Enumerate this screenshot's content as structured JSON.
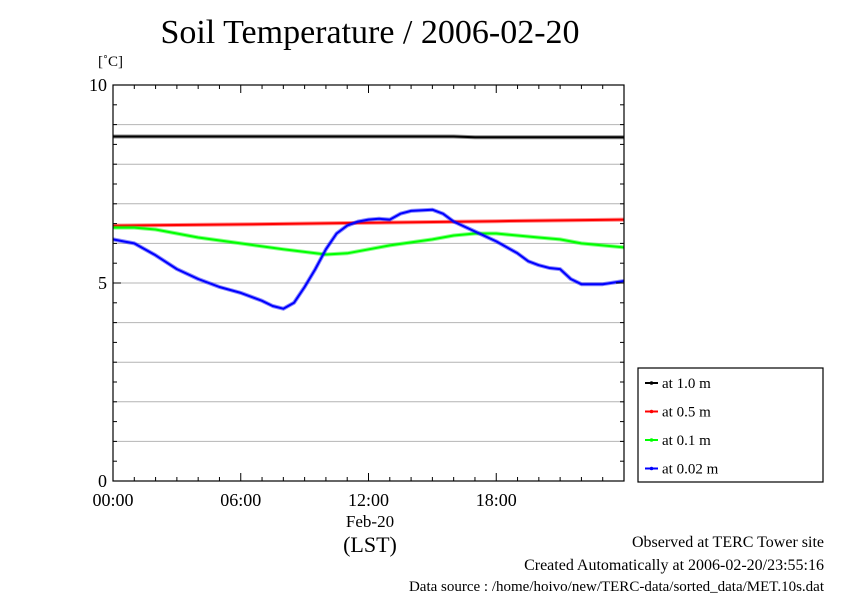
{
  "title": "Soil Temperature / 2006-02-20",
  "unit": "[˚C]",
  "date_label": "Feb-20",
  "timezone_label": "(LST)",
  "footer": {
    "observed": "Observed at TERC Tower site",
    "created": "Created Automatically at 2006-02-20/23:55:16",
    "source": "Data source : /home/hoivo/new/TERC-data/sorted_data/MET.10s.dat"
  },
  "chart_data": {
    "type": "line",
    "title": "Soil Temperature / 2006-02-20",
    "xlabel": "(LST)",
    "ylabel": "[˚C]",
    "xlim": [
      0,
      24
    ],
    "ylim": [
      0,
      10
    ],
    "x_ticks": [
      {
        "value": 0,
        "label": "00:00"
      },
      {
        "value": 6,
        "label": "06:00"
      },
      {
        "value": 12,
        "label": "12:00"
      },
      {
        "value": 18,
        "label": "18:00"
      }
    ],
    "y_ticks": [
      {
        "value": 0,
        "label": "0"
      },
      {
        "value": 5,
        "label": "5"
      },
      {
        "value": 10,
        "label": "10"
      }
    ],
    "grid": true,
    "legend_position": "bottom-right, outside plot",
    "series": [
      {
        "name": "at 1.0 m",
        "color": "#000000",
        "x": [
          0,
          4,
          8,
          12,
          16,
          17,
          20,
          24
        ],
        "y": [
          8.7,
          8.7,
          8.7,
          8.7,
          8.7,
          8.68,
          8.68,
          8.68
        ]
      },
      {
        "name": "at 0.5 m",
        "color": "#ff0000",
        "x": [
          0,
          6,
          12,
          18,
          24
        ],
        "y": [
          6.45,
          6.48,
          6.52,
          6.56,
          6.6
        ]
      },
      {
        "name": "at 0.1 m",
        "color": "#00ff00",
        "x": [
          0,
          1,
          2,
          4,
          6,
          8,
          10,
          11,
          13,
          15,
          16,
          17,
          18,
          20,
          21,
          22,
          24
        ],
        "y": [
          6.4,
          6.4,
          6.35,
          6.15,
          6.0,
          5.85,
          5.72,
          5.75,
          5.95,
          6.1,
          6.2,
          6.25,
          6.25,
          6.15,
          6.1,
          6.0,
          5.9
        ]
      },
      {
        "name": "at 0.02 m",
        "color": "#0000ff",
        "x": [
          0,
          1,
          2,
          3,
          4,
          5,
          6,
          7,
          7.5,
          8,
          8.5,
          9,
          9.5,
          10,
          10.5,
          11,
          11.5,
          12,
          12.5,
          13,
          13.5,
          14,
          15,
          15.5,
          16,
          17,
          18,
          19,
          19.5,
          20,
          20.5,
          21,
          21.5,
          22,
          23,
          24
        ],
        "y": [
          6.1,
          6.0,
          5.7,
          5.35,
          5.1,
          4.9,
          4.75,
          4.55,
          4.42,
          4.35,
          4.5,
          4.9,
          5.35,
          5.85,
          6.25,
          6.45,
          6.55,
          6.6,
          6.62,
          6.6,
          6.75,
          6.82,
          6.85,
          6.75,
          6.55,
          6.3,
          6.05,
          5.75,
          5.55,
          5.45,
          5.38,
          5.35,
          5.1,
          4.97,
          4.97,
          5.05
        ]
      }
    ]
  }
}
